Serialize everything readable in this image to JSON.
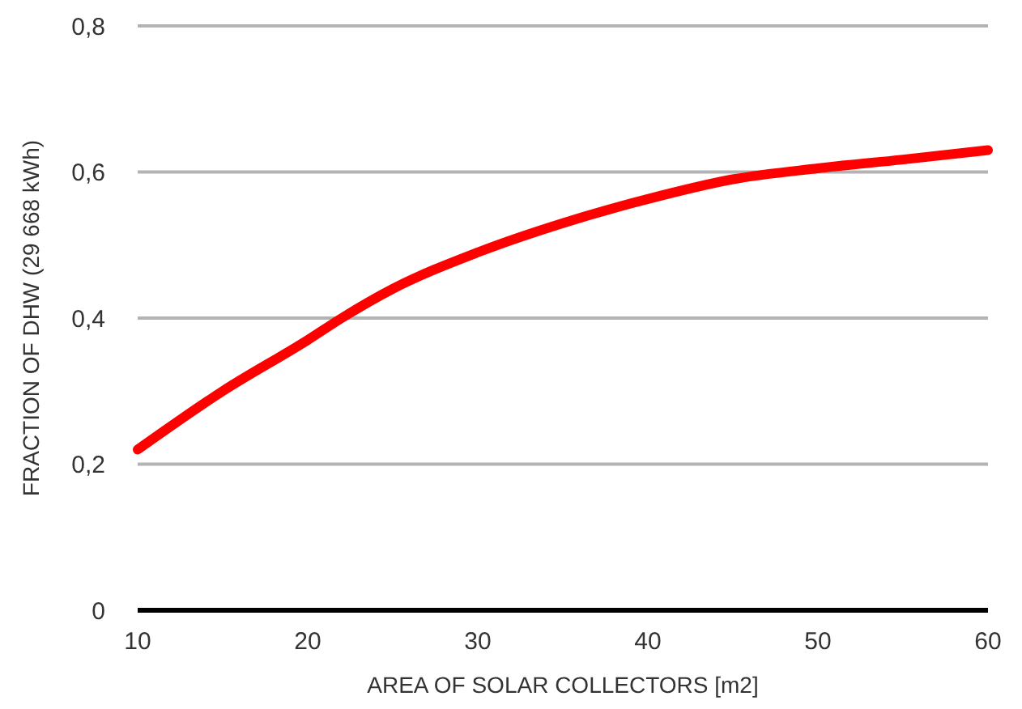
{
  "chart_data": {
    "type": "line",
    "xlabel": "AREA OF SOLAR COLLECTORS [m2]",
    "ylabel": "FRACTION OF DHW (29 668 kWh)",
    "x": [
      10,
      15,
      20,
      22,
      25,
      30,
      35,
      40,
      45,
      50,
      55,
      60
    ],
    "series": [
      {
        "color": "#ff0000",
        "values": [
          0.22,
          0.3,
          0.37,
          0.4,
          0.44,
          0.49,
          0.53,
          0.563,
          0.59,
          0.605,
          0.617,
          0.63
        ]
      }
    ],
    "xlim": [
      10,
      60
    ],
    "xticks": [
      10,
      20,
      30,
      40,
      50,
      60
    ],
    "ylim": [
      0,
      0.8
    ],
    "yticks": [
      0,
      {
        "value": 0.2,
        "label": "0,2"
      },
      {
        "value": 0.4,
        "label": "0,4"
      },
      {
        "value": 0.6,
        "label": "0,6"
      },
      {
        "value": 0.8,
        "label": "0,8"
      }
    ],
    "grid": "y",
    "marker": "none",
    "line_style": "solid"
  }
}
